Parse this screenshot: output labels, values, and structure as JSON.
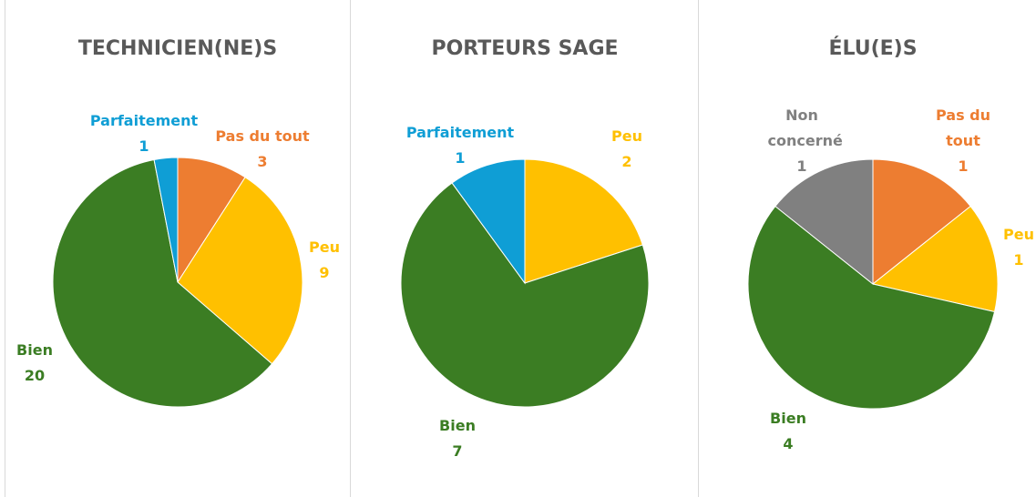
{
  "chart_data": [
    {
      "type": "pie",
      "title": "TECHNICIEN(NE)S",
      "categories": [
        "Pas du tout",
        "Peu",
        "Bien",
        "Parfaitement"
      ],
      "values": [
        3,
        9,
        20,
        1
      ],
      "colors": [
        "#ED7D31",
        "#FFC000",
        "#3B7D23",
        "#0F9ED5"
      ]
    },
    {
      "type": "pie",
      "title": "PORTEURS SAGE",
      "categories": [
        "Peu",
        "Bien",
        "Parfaitement"
      ],
      "values": [
        2,
        7,
        1
      ],
      "colors": [
        "#FFC000",
        "#3B7D23",
        "#0F9ED5"
      ]
    },
    {
      "type": "pie",
      "title": "ÉLU(E)S",
      "categories": [
        "Pas du tout",
        "Peu",
        "Bien",
        "Non concerné"
      ],
      "values": [
        1,
        1,
        4,
        1
      ],
      "colors": [
        "#ED7D31",
        "#FFC000",
        "#3B7D23",
        "#808080"
      ]
    }
  ]
}
